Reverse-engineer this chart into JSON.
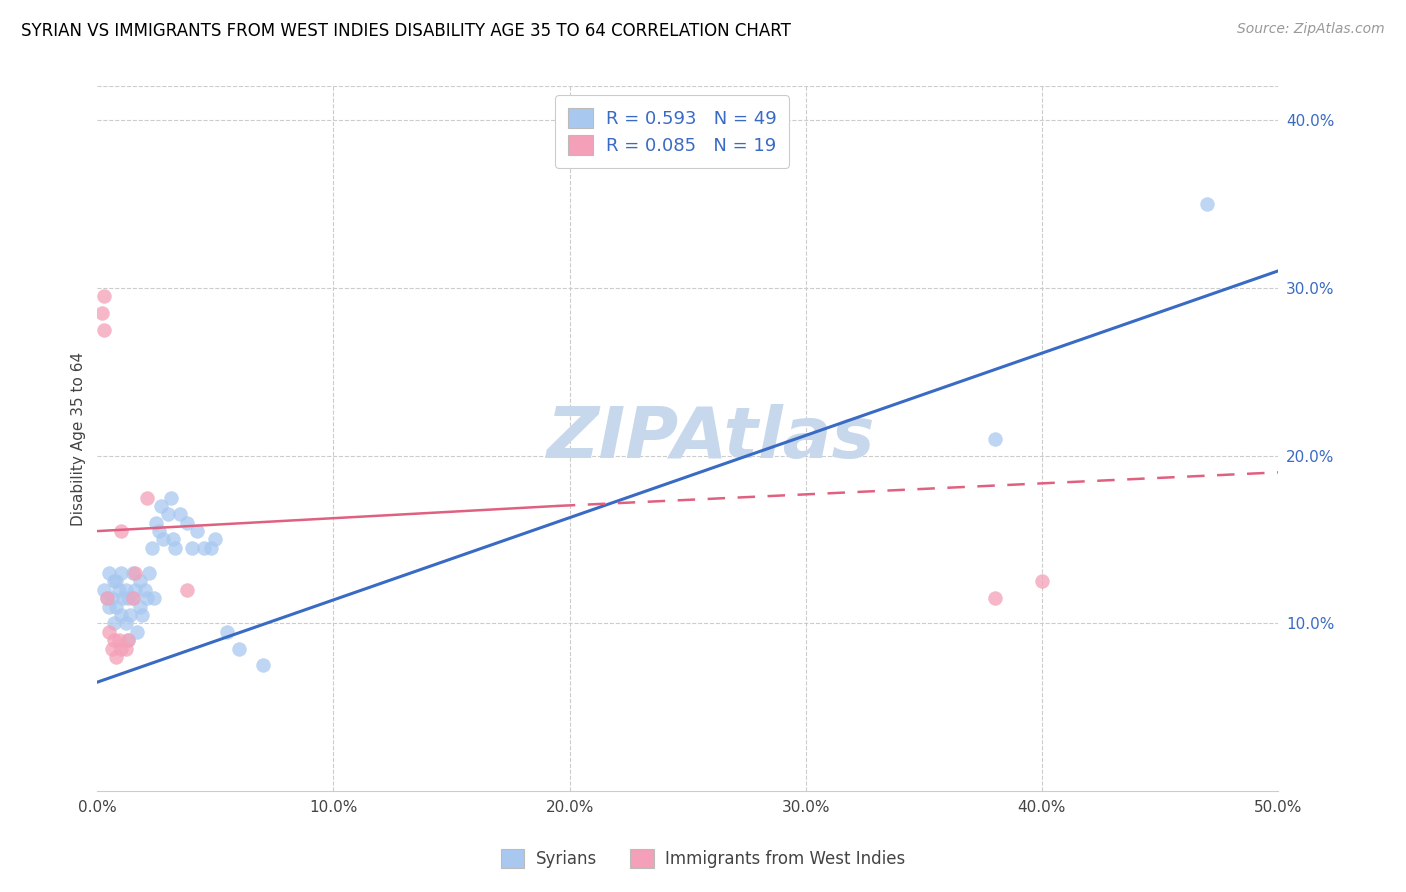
{
  "title": "SYRIAN VS IMMIGRANTS FROM WEST INDIES DISABILITY AGE 35 TO 64 CORRELATION CHART",
  "source": "Source: ZipAtlas.com",
  "ylabel": "Disability Age 35 to 64",
  "xmin": 0.0,
  "xmax": 0.5,
  "ymin": 0.0,
  "ymax": 0.42,
  "xticks": [
    0.0,
    0.1,
    0.2,
    0.3,
    0.4,
    0.5
  ],
  "xtick_labels": [
    "0.0%",
    "10.0%",
    "20.0%",
    "30.0%",
    "40.0%",
    "50.0%"
  ],
  "ytick_vals_right": [
    0.1,
    0.2,
    0.3,
    0.4
  ],
  "ytick_labels_right": [
    "10.0%",
    "20.0%",
    "30.0%",
    "40.0%"
  ],
  "blue_color": "#A8C8F0",
  "pink_color": "#F4A0B8",
  "legend_label1": "Syrians",
  "legend_label2": "Immigrants from West Indies",
  "watermark": "ZIPAtlas",
  "blue_scatter_x": [
    0.003,
    0.004,
    0.005,
    0.005,
    0.006,
    0.007,
    0.007,
    0.008,
    0.008,
    0.009,
    0.01,
    0.01,
    0.011,
    0.012,
    0.012,
    0.013,
    0.013,
    0.014,
    0.015,
    0.015,
    0.016,
    0.017,
    0.018,
    0.018,
    0.019,
    0.02,
    0.021,
    0.022,
    0.023,
    0.024,
    0.025,
    0.026,
    0.027,
    0.028,
    0.03,
    0.031,
    0.032,
    0.033,
    0.035,
    0.038,
    0.04,
    0.042,
    0.045,
    0.048,
    0.05,
    0.055,
    0.06,
    0.07,
    0.38,
    0.47
  ],
  "blue_scatter_y": [
    0.12,
    0.115,
    0.11,
    0.13,
    0.115,
    0.1,
    0.125,
    0.11,
    0.125,
    0.12,
    0.105,
    0.13,
    0.115,
    0.1,
    0.12,
    0.09,
    0.115,
    0.105,
    0.115,
    0.13,
    0.12,
    0.095,
    0.11,
    0.125,
    0.105,
    0.12,
    0.115,
    0.13,
    0.145,
    0.115,
    0.16,
    0.155,
    0.17,
    0.15,
    0.165,
    0.175,
    0.15,
    0.145,
    0.165,
    0.16,
    0.145,
    0.155,
    0.145,
    0.145,
    0.15,
    0.095,
    0.085,
    0.075,
    0.21,
    0.35
  ],
  "pink_scatter_x": [
    0.002,
    0.003,
    0.003,
    0.004,
    0.005,
    0.006,
    0.007,
    0.008,
    0.009,
    0.01,
    0.01,
    0.012,
    0.013,
    0.015,
    0.016,
    0.021,
    0.038,
    0.38,
    0.4
  ],
  "pink_scatter_y": [
    0.285,
    0.275,
    0.295,
    0.115,
    0.095,
    0.085,
    0.09,
    0.08,
    0.09,
    0.085,
    0.155,
    0.085,
    0.09,
    0.115,
    0.13,
    0.175,
    0.12,
    0.115,
    0.125
  ],
  "blue_line_x": [
    0.0,
    0.5
  ],
  "blue_line_y": [
    0.065,
    0.31
  ],
  "pink_line_x0": 0.0,
  "pink_line_x_split": 0.195,
  "pink_line_x1": 0.5,
  "pink_line_y0": 0.155,
  "pink_line_y_split": 0.17,
  "pink_line_y1": 0.19,
  "title_fontsize": 12,
  "source_fontsize": 10,
  "watermark_color": "#C8D8EC",
  "watermark_fontsize": 52,
  "blue_line_color": "#3A6BC4",
  "pink_line_color": "#E06080"
}
